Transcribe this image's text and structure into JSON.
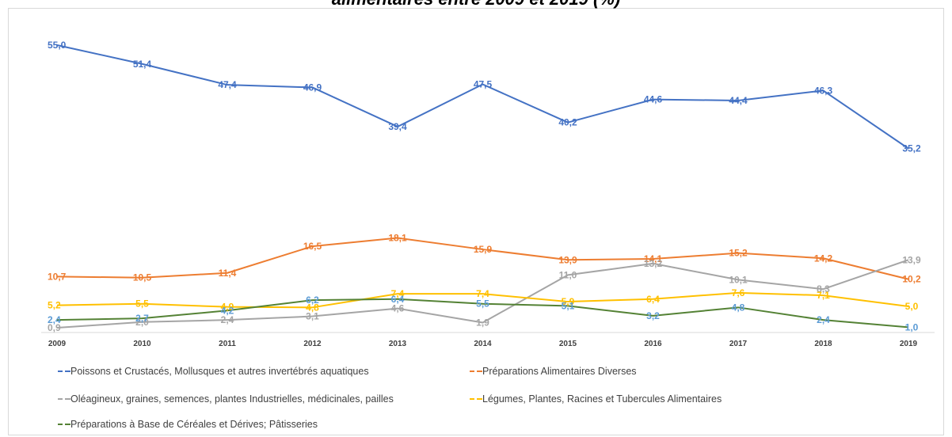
{
  "chart_data": {
    "type": "line",
    "title": "alimentaires entre 2009 et 2019 (%)",
    "xlabel": "",
    "ylabel": "",
    "x": [
      "2009",
      "2010",
      "2011",
      "2012",
      "2013",
      "2014",
      "2015",
      "2016",
      "2017",
      "2018",
      "2019"
    ],
    "ylim": [
      0,
      58
    ],
    "grid": false,
    "legend_position": "bottom",
    "series": [
      {
        "name": "Poissons et Crustacés, Mollusques et autres invertébrés aquatiques",
        "color": "#4472c4",
        "values": [
          55.0,
          51.4,
          47.4,
          46.9,
          39.4,
          47.5,
          40.2,
          44.6,
          44.4,
          46.3,
          35.2
        ],
        "labels": [
          "55,0",
          "51,4",
          "47,4",
          "46,9",
          "39,4",
          "47,5",
          "40,2",
          "44,6",
          "44,4",
          "46,3",
          "35,2"
        ]
      },
      {
        "name": "Préparations Alimentaires Diverses",
        "color": "#ed7d31",
        "values": [
          10.7,
          10.5,
          11.4,
          16.5,
          18.1,
          15.9,
          13.9,
          14.1,
          15.2,
          14.2,
          10.2
        ],
        "labels": [
          "10,7",
          "10,5",
          "11,4",
          "16,5",
          "18,1",
          "15,9",
          "13,9",
          "14,1",
          "15,2",
          "14,2",
          "10,2"
        ]
      },
      {
        "name": "Oléagineux, graines, semences, plantes Industrielles, médicinales, pailles",
        "color": "#a5a5a5",
        "values": [
          0.9,
          2.0,
          2.4,
          3.1,
          4.6,
          1.9,
          11.0,
          13.2,
          10.1,
          8.3,
          13.9
        ],
        "labels": [
          "0,9",
          "2,0",
          "2,4",
          "3,1",
          "4,6",
          "1,9",
          "11,0",
          "13,2",
          "10,1",
          "8,3",
          "13,9"
        ]
      },
      {
        "name": "Légumes, Plantes, Racines et Tubercules Alimentaires",
        "color": "#ffc000",
        "values": [
          5.2,
          5.5,
          4.9,
          4.8,
          7.4,
          7.4,
          5.9,
          6.4,
          7.6,
          7.1,
          5.0
        ],
        "labels": [
          "5,2",
          "5,5",
          "4,9",
          "4,8",
          "7,4",
          "7,4",
          "5,9",
          "6,4",
          "7,6",
          "7,1",
          "5,0"
        ]
      },
      {
        "name": "Préparations à Base de Céréales et Dérives; Pâtisseries",
        "color": "#548235",
        "values": [
          2.4,
          2.7,
          4.2,
          6.2,
          6.4,
          5.5,
          5.1,
          3.2,
          4.8,
          2.4,
          1.0
        ],
        "labels": [
          "2,4",
          "2,7",
          "4,2",
          "6,2",
          "6,4",
          "5,5",
          "5,1",
          "3,2",
          "4,8",
          "2,4",
          "1,0"
        ],
        "label_color": "#5b9bd5"
      }
    ]
  }
}
